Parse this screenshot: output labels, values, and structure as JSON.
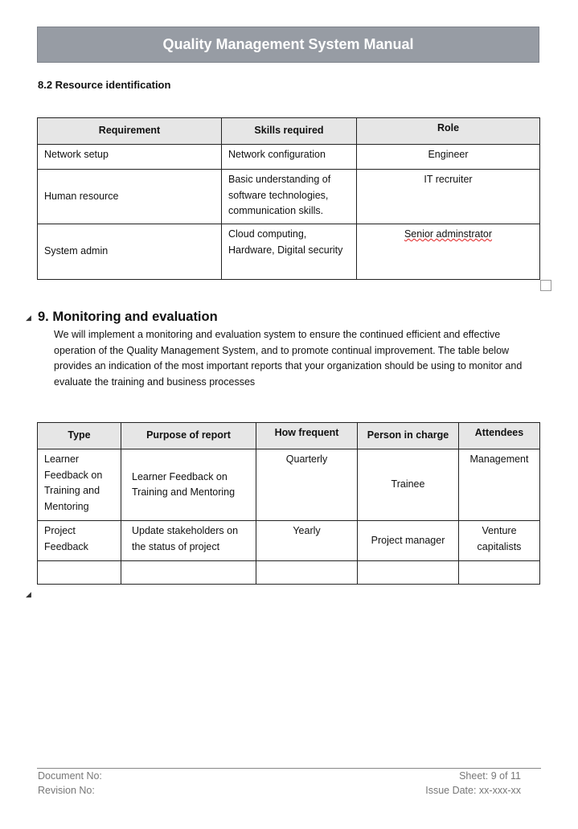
{
  "header": {
    "title": "Quality Management System Manual"
  },
  "section_8_2": {
    "heading": "8.2 Resource identification",
    "columns": [
      "Requirement",
      "Skills required",
      "Role"
    ],
    "rows": [
      [
        "Network setup",
        "Network configuration",
        "Engineer"
      ],
      [
        "Human resource",
        "Basic understanding of software technologies, communication skills.",
        "IT recruiter"
      ],
      [
        "System admin",
        "Cloud computing, Hardware, Digital security",
        "Senior adminstrator"
      ]
    ]
  },
  "section_9": {
    "heading": "9. Monitoring and evaluation",
    "paragraph": "We will implement a monitoring and evaluation system to ensure the continued efficient and effective operation of the Quality Management System, and to promote continual improvement. The table below provides an indication of the most important reports that your organization should be using to monitor and evaluate the training and business processes",
    "columns": [
      "Type",
      "Purpose of report",
      "How frequent",
      "Person in charge",
      "Attendees"
    ],
    "rows": [
      [
        "Learner Feedback on Training and Mentoring",
        "Learner Feedback on Training and Mentoring",
        "Quarterly",
        "Trainee",
        "Management"
      ],
      [
        "Project Feedback",
        "Update stakeholders on the status of project",
        "Yearly",
        "Project manager",
        "Venture capitalists"
      ],
      [
        "",
        "",
        "",
        "",
        ""
      ]
    ]
  },
  "footer": {
    "document_no": "Document No:",
    "revision_no": "Revision No:",
    "sheet": "Sheet: 9 of 11",
    "issue_date": "Issue Date: xx-xxx-xx"
  }
}
